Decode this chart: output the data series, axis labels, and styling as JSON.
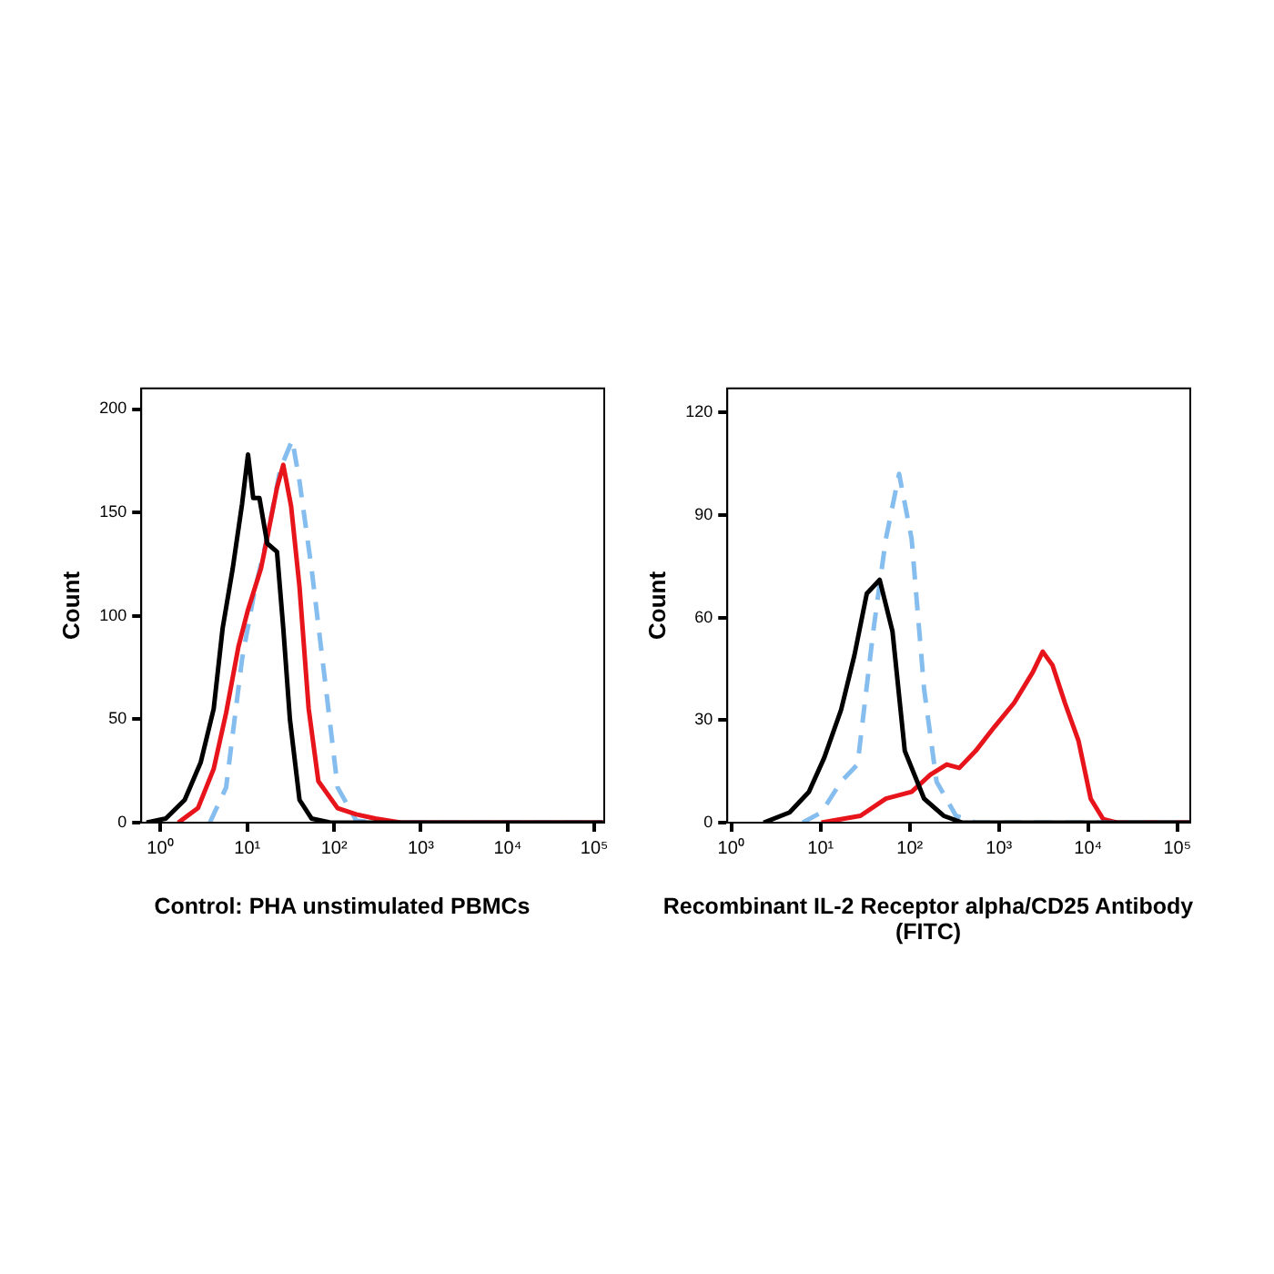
{
  "chart_data": [
    {
      "type": "line",
      "xlabel": "Control: PHA unstimulated PBMCs",
      "ylabel": "Count",
      "log": "x",
      "grid": false,
      "legend": false,
      "marker": "none",
      "xlim": [
        0.6,
        130000
      ],
      "xticks": [
        {
          "value": 1,
          "label": "10⁰"
        },
        {
          "value": 10,
          "label": "10¹"
        },
        {
          "value": 100,
          "label": "10²"
        },
        {
          "value": 1000,
          "label": "10³"
        },
        {
          "value": 10000,
          "label": "10⁴"
        },
        {
          "value": 100000,
          "label": "10⁵"
        }
      ],
      "ylim": [
        0,
        210
      ],
      "yticks": [
        0,
        50,
        100,
        150,
        200
      ],
      "series": [
        {
          "color": "#000000",
          "line_style": "solid",
          "x": [
            0.69,
            1.15,
            1.9,
            2.9,
            4.1,
            5.2,
            6.8,
            8.7,
            10.2,
            11.7,
            13.8,
            17,
            22,
            26,
            31,
            40,
            55,
            91,
            126000
          ],
          "values": [
            0,
            2,
            11,
            29,
            55,
            94,
            123,
            154,
            178,
            157,
            157,
            135,
            131,
            94,
            50,
            11,
            2,
            0,
            0
          ]
        },
        {
          "color": "#e8141b",
          "line_style": "solid",
          "x": [
            1.6,
            2.7,
            4.1,
            5.7,
            7.9,
            10.2,
            14.4,
            17,
            22,
            26,
            32,
            40,
            51,
            66,
            110,
            180,
            300,
            590,
            126000
          ],
          "values": [
            0,
            7,
            26,
            53,
            85,
            103,
            123,
            138,
            162,
            173,
            153,
            114,
            55,
            20,
            7,
            4,
            2,
            0,
            0
          ]
        },
        {
          "color": "#85bdee",
          "line_style": "dashed",
          "x": [
            3.7,
            5.7,
            8.7,
            12,
            17,
            24,
            33,
            40,
            55,
            78,
            110,
            180,
            300,
            126000
          ],
          "values": [
            0,
            17,
            79,
            111,
            138,
            171,
            185,
            165,
            123,
            70,
            17,
            1,
            0,
            0
          ]
        }
      ]
    },
    {
      "type": "line",
      "xlabel": "Recombinant IL-2 Receptor alpha/CD25 Antibody (FITC)",
      "ylabel": "Count",
      "log": "x",
      "grid": false,
      "legend": false,
      "marker": "none",
      "xlim": [
        0.9,
        140000
      ],
      "xticks": [
        {
          "value": 1,
          "label": "10⁰"
        },
        {
          "value": 10,
          "label": "10¹"
        },
        {
          "value": 100,
          "label": "10²"
        },
        {
          "value": 1000,
          "label": "10³"
        },
        {
          "value": 10000,
          "label": "10⁴"
        },
        {
          "value": 100000,
          "label": "10⁵"
        }
      ],
      "ylim": [
        0,
        127
      ],
      "yticks": [
        0,
        30,
        60,
        90,
        120
      ],
      "series": [
        {
          "color": "#000000",
          "line_style": "solid",
          "x": [
            2.3,
            4.5,
            7.4,
            11,
            17,
            24,
            33,
            46,
            64,
            88,
            145,
            240,
            390,
            140000
          ],
          "values": [
            0,
            3,
            9,
            19,
            33,
            49,
            67,
            71,
            56,
            21,
            7,
            2,
            0,
            0
          ]
        },
        {
          "color": "#85bdee",
          "line_style": "dashed",
          "x": [
            6.3,
            10.2,
            17,
            26,
            39,
            54,
            76,
            105,
            145,
            200,
            330,
            550,
            140000
          ],
          "values": [
            0,
            3,
            12,
            17,
            56,
            83,
            102,
            83,
            39,
            12,
            2,
            0,
            0
          ]
        },
        {
          "color": "#e8141b",
          "line_style": "solid",
          "x": [
            10.2,
            28,
            54,
            105,
            170,
            260,
            360,
            550,
            890,
            1480,
            2400,
            3100,
            4000,
            5500,
            7800,
            10700,
            14800,
            21000,
            140000
          ],
          "values": [
            0,
            2,
            7,
            9,
            14,
            17,
            16,
            21,
            28,
            35,
            44,
            50,
            46,
            35,
            24,
            7,
            1,
            0,
            0
          ]
        }
      ]
    }
  ]
}
